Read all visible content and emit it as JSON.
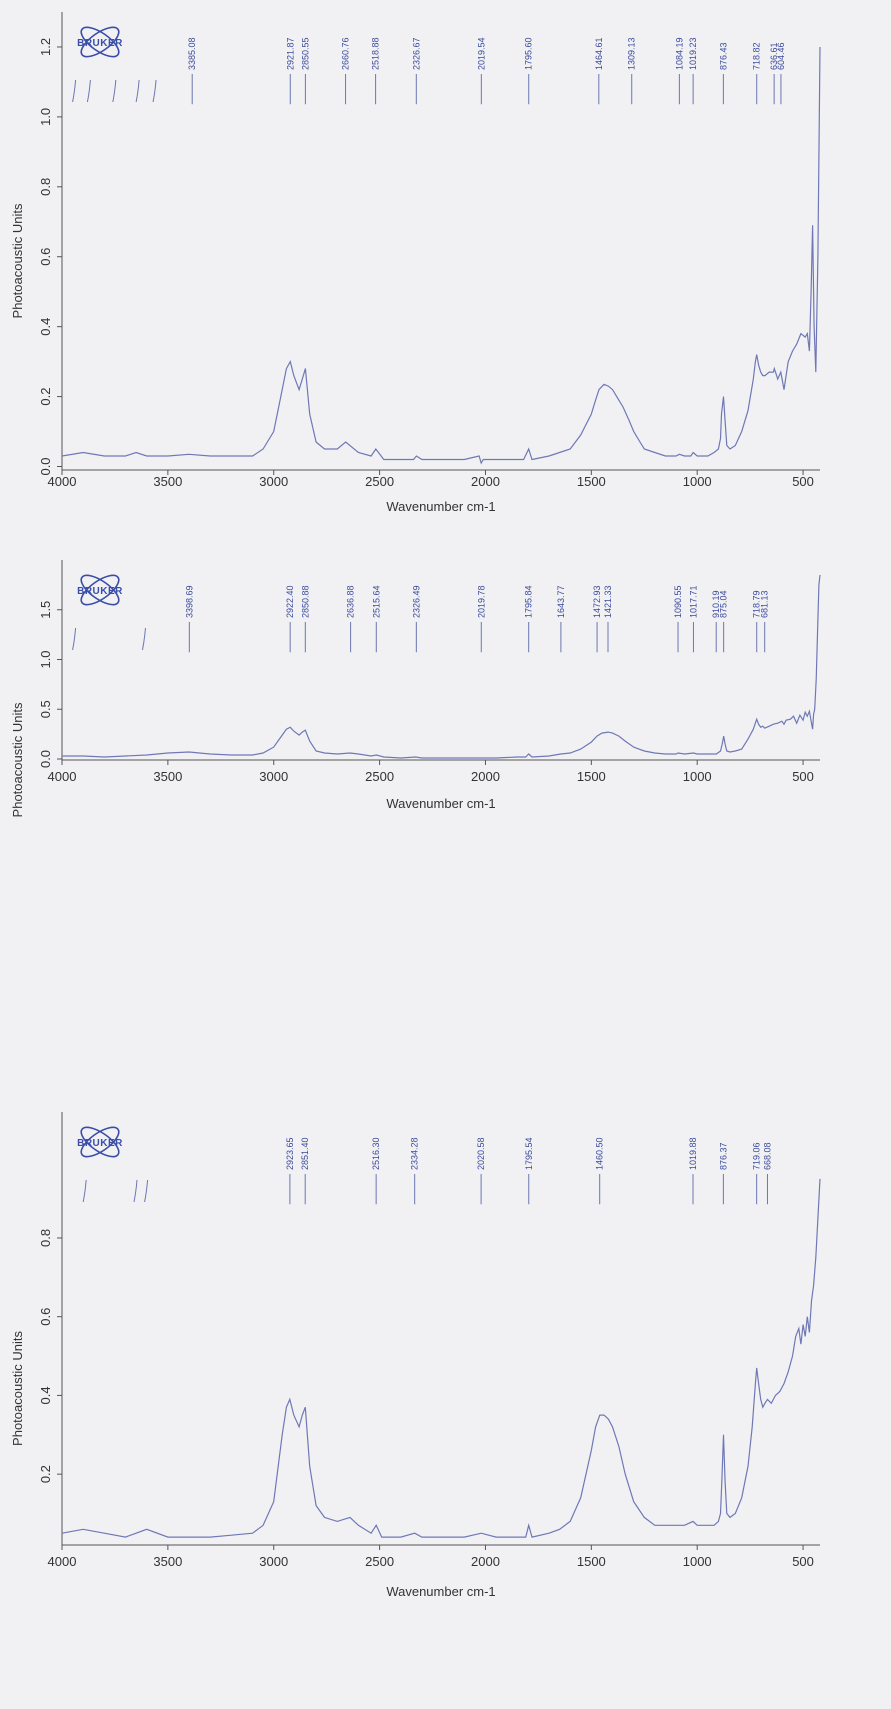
{
  "chart_data": [
    {
      "type": "line",
      "xlabel": "Wavenumber cm-1",
      "ylabel": "Photoacoustic Units",
      "xlim": [
        4000,
        420
      ],
      "ylim": [
        -0.01,
        1.3
      ],
      "x_ticks": [
        4000,
        3500,
        3000,
        2500,
        2000,
        1500,
        1000,
        500
      ],
      "y_ticks": [
        0.0,
        0.2,
        0.4,
        0.6,
        0.8,
        1.0,
        1.2
      ],
      "y_tick_labels": [
        "0.0",
        "0.2",
        "0.4",
        "0.6",
        "0.8",
        "1.0",
        "1.2"
      ],
      "logo": "BRUKER",
      "peak_labels": [
        {
          "x": 3385.08,
          "label": "3385.08"
        },
        {
          "x": 2921.87,
          "label": "2921.87"
        },
        {
          "x": 2850.55,
          "label": "2850.55"
        },
        {
          "x": 2660.76,
          "label": "2660.76"
        },
        {
          "x": 2518.88,
          "label": "2518.88"
        },
        {
          "x": 2326.67,
          "label": "2326.67"
        },
        {
          "x": 2019.54,
          "label": "2019.54"
        },
        {
          "x": 1795.6,
          "label": "1795.60"
        },
        {
          "x": 1464.61,
          "label": "1464.61"
        },
        {
          "x": 1309.13,
          "label": "1309.13"
        },
        {
          "x": 1084.19,
          "label": "1084.19"
        },
        {
          "x": 1019.23,
          "label": "1019.23"
        },
        {
          "x": 876.43,
          "label": "876.43"
        },
        {
          "x": 718.82,
          "label": "718.82"
        },
        {
          "x": 636.61,
          "label": "636.61"
        },
        {
          "x": 604.46,
          "label": "604.46"
        }
      ],
      "unlabeled_peaks": [
        3950,
        3880,
        3760,
        3650,
        3570
      ],
      "x": [
        4000,
        3900,
        3800,
        3700,
        3650,
        3600,
        3500,
        3400,
        3300,
        3200,
        3100,
        3050,
        3000,
        2960,
        2940,
        2921.87,
        2905,
        2880,
        2865,
        2850.55,
        2830,
        2800,
        2760,
        2700,
        2660,
        2600,
        2540,
        2518,
        2480,
        2400,
        2340,
        2326,
        2300,
        2200,
        2100,
        2030,
        2020,
        2010,
        1900,
        1820,
        1796,
        1780,
        1700,
        1650,
        1600,
        1550,
        1500,
        1480,
        1464,
        1440,
        1420,
        1400,
        1380,
        1350,
        1320,
        1300,
        1270,
        1250,
        1200,
        1150,
        1100,
        1084,
        1060,
        1030,
        1019,
        1000,
        950,
        920,
        900,
        890,
        885,
        876,
        868,
        860,
        845,
        820,
        790,
        760,
        735,
        725,
        719,
        710,
        700,
        690,
        680,
        660,
        640,
        636,
        630,
        620,
        605,
        590,
        570,
        550,
        530,
        510,
        490,
        480,
        470,
        462,
        455,
        448,
        440,
        430,
        420
      ],
      "y": [
        0.03,
        0.04,
        0.03,
        0.03,
        0.04,
        0.03,
        0.03,
        0.035,
        0.03,
        0.03,
        0.03,
        0.05,
        0.1,
        0.22,
        0.28,
        0.3,
        0.26,
        0.22,
        0.25,
        0.28,
        0.15,
        0.07,
        0.05,
        0.05,
        0.07,
        0.04,
        0.03,
        0.05,
        0.02,
        0.02,
        0.02,
        0.03,
        0.02,
        0.02,
        0.02,
        0.03,
        0.01,
        0.02,
        0.02,
        0.02,
        0.05,
        0.02,
        0.03,
        0.04,
        0.05,
        0.09,
        0.15,
        0.19,
        0.22,
        0.235,
        0.23,
        0.22,
        0.2,
        0.17,
        0.13,
        0.1,
        0.07,
        0.05,
        0.04,
        0.03,
        0.03,
        0.035,
        0.03,
        0.03,
        0.04,
        0.03,
        0.03,
        0.04,
        0.05,
        0.08,
        0.15,
        0.2,
        0.13,
        0.06,
        0.05,
        0.06,
        0.1,
        0.16,
        0.25,
        0.3,
        0.32,
        0.29,
        0.27,
        0.26,
        0.26,
        0.27,
        0.27,
        0.28,
        0.27,
        0.25,
        0.27,
        0.22,
        0.3,
        0.33,
        0.35,
        0.38,
        0.37,
        0.38,
        0.33,
        0.5,
        0.69,
        0.4,
        0.27,
        0.6,
        1.2
      ]
    },
    {
      "type": "line",
      "xlabel": "Wavenumber cm-1",
      "ylabel": "Photoacoustic Units",
      "xlim": [
        4000,
        420
      ],
      "ylim": [
        -0.01,
        2.0
      ],
      "x_ticks": [
        4000,
        3500,
        3000,
        2500,
        2000,
        1500,
        1000,
        500
      ],
      "y_ticks": [
        0.0,
        0.5,
        1.0,
        1.5
      ],
      "y_tick_labels": [
        "0.0",
        "0.5",
        "1.0",
        "1.5"
      ],
      "logo": "BRUKER",
      "peak_labels": [
        {
          "x": 3398.69,
          "label": "3398.69"
        },
        {
          "x": 2922.4,
          "label": "2922.40"
        },
        {
          "x": 2850.88,
          "label": "2850.88"
        },
        {
          "x": 2636.88,
          "label": "2636.88"
        },
        {
          "x": 2515.64,
          "label": "2515.64"
        },
        {
          "x": 2326.49,
          "label": "2326.49"
        },
        {
          "x": 2019.78,
          "label": "2019.78"
        },
        {
          "x": 1795.84,
          "label": "1795.84"
        },
        {
          "x": 1643.77,
          "label": "1643.77"
        },
        {
          "x": 1472.93,
          "label": "1472.93"
        },
        {
          "x": 1421.33,
          "label": "1421.33"
        },
        {
          "x": 1090.55,
          "label": "1090.55"
        },
        {
          "x": 1017.71,
          "label": "1017.71"
        },
        {
          "x": 910.19,
          "label": "910.19"
        },
        {
          "x": 875.04,
          "label": "875.04"
        },
        {
          "x": 718.79,
          "label": "718.79"
        },
        {
          "x": 681.13,
          "label": "681.13"
        }
      ],
      "unlabeled_peaks": [
        3950,
        3620
      ],
      "x": [
        4000,
        3900,
        3800,
        3700,
        3600,
        3500,
        3400,
        3300,
        3200,
        3100,
        3050,
        3000,
        2960,
        2940,
        2922,
        2905,
        2880,
        2865,
        2851,
        2830,
        2800,
        2760,
        2700,
        2640,
        2600,
        2540,
        2515,
        2480,
        2400,
        2330,
        2300,
        2200,
        2100,
        2020,
        1950,
        1850,
        1810,
        1796,
        1780,
        1700,
        1644,
        1600,
        1550,
        1500,
        1473,
        1450,
        1421,
        1400,
        1370,
        1340,
        1300,
        1250,
        1200,
        1150,
        1100,
        1090,
        1060,
        1018,
        1000,
        950,
        910,
        890,
        882,
        875,
        868,
        860,
        845,
        820,
        790,
        760,
        735,
        719,
        710,
        700,
        690,
        681,
        660,
        640,
        620,
        600,
        590,
        580,
        560,
        545,
        530,
        515,
        500,
        490,
        480,
        470,
        460,
        455,
        450,
        445,
        438,
        430,
        425,
        420
      ],
      "y": [
        0.03,
        0.03,
        0.02,
        0.03,
        0.04,
        0.06,
        0.07,
        0.05,
        0.04,
        0.04,
        0.06,
        0.12,
        0.24,
        0.3,
        0.32,
        0.28,
        0.24,
        0.27,
        0.29,
        0.18,
        0.08,
        0.06,
        0.05,
        0.06,
        0.05,
        0.03,
        0.04,
        0.02,
        0.01,
        0.02,
        0.01,
        0.01,
        0.01,
        0.01,
        0.01,
        0.02,
        0.02,
        0.05,
        0.02,
        0.03,
        0.05,
        0.06,
        0.1,
        0.17,
        0.23,
        0.26,
        0.27,
        0.26,
        0.23,
        0.18,
        0.12,
        0.08,
        0.06,
        0.05,
        0.05,
        0.06,
        0.05,
        0.06,
        0.05,
        0.05,
        0.05,
        0.08,
        0.15,
        0.23,
        0.15,
        0.08,
        0.07,
        0.08,
        0.1,
        0.2,
        0.3,
        0.4,
        0.35,
        0.32,
        0.33,
        0.31,
        0.33,
        0.35,
        0.36,
        0.38,
        0.35,
        0.39,
        0.4,
        0.43,
        0.36,
        0.44,
        0.39,
        0.47,
        0.43,
        0.48,
        0.36,
        0.3,
        0.45,
        0.5,
        0.8,
        1.4,
        1.75,
        1.85
      ]
    },
    {
      "type": "line",
      "xlabel": "Wavenumber cm-1",
      "ylabel": "Photoacoustic Units",
      "xlim": [
        4000,
        420
      ],
      "ylim": [
        0.02,
        1.12
      ],
      "x_ticks": [
        4000,
        3500,
        3000,
        2500,
        2000,
        1500,
        1000,
        500
      ],
      "y_ticks": [
        0.2,
        0.4,
        0.6,
        0.8
      ],
      "y_tick_labels": [
        "0.2",
        "0.4",
        "0.6",
        "0.8"
      ],
      "logo": "BRUKER",
      "peak_labels": [
        {
          "x": 2923.65,
          "label": "2923.65"
        },
        {
          "x": 2851.4,
          "label": "2851.40"
        },
        {
          "x": 2516.3,
          "label": "2516.30"
        },
        {
          "x": 2334.28,
          "label": "2334.28"
        },
        {
          "x": 2020.58,
          "label": "2020.58"
        },
        {
          "x": 1795.54,
          "label": "1795.54"
        },
        {
          "x": 1460.5,
          "label": "1460.50"
        },
        {
          "x": 1019.88,
          "label": "1019.88"
        },
        {
          "x": 876.37,
          "label": "876.37"
        },
        {
          "x": 719.06,
          "label": "719.06"
        },
        {
          "x": 668.08,
          "label": "668.08"
        }
      ],
      "unlabeled_peaks": [
        3900,
        3660,
        3610
      ],
      "x": [
        4000,
        3900,
        3800,
        3700,
        3650,
        3600,
        3500,
        3400,
        3300,
        3200,
        3100,
        3050,
        3000,
        2960,
        2940,
        2924,
        2905,
        2880,
        2865,
        2851,
        2830,
        2800,
        2760,
        2700,
        2640,
        2600,
        2540,
        2516,
        2490,
        2400,
        2334,
        2300,
        2200,
        2100,
        2020,
        1950,
        1850,
        1810,
        1796,
        1780,
        1700,
        1650,
        1600,
        1550,
        1500,
        1480,
        1460,
        1440,
        1420,
        1400,
        1370,
        1340,
        1300,
        1250,
        1200,
        1150,
        1100,
        1060,
        1020,
        1000,
        950,
        920,
        900,
        890,
        884,
        876,
        868,
        860,
        845,
        820,
        790,
        760,
        740,
        725,
        719,
        710,
        700,
        690,
        680,
        668,
        650,
        630,
        610,
        590,
        570,
        550,
        535,
        520,
        510,
        500,
        490,
        480,
        470,
        460,
        450,
        440,
        430,
        420
      ],
      "y": [
        0.05,
        0.06,
        0.05,
        0.04,
        0.05,
        0.06,
        0.04,
        0.04,
        0.04,
        0.045,
        0.05,
        0.07,
        0.13,
        0.3,
        0.37,
        0.39,
        0.35,
        0.32,
        0.35,
        0.37,
        0.22,
        0.12,
        0.09,
        0.08,
        0.09,
        0.07,
        0.05,
        0.07,
        0.04,
        0.04,
        0.05,
        0.04,
        0.04,
        0.04,
        0.05,
        0.04,
        0.04,
        0.04,
        0.07,
        0.04,
        0.05,
        0.06,
        0.08,
        0.14,
        0.26,
        0.32,
        0.35,
        0.35,
        0.34,
        0.32,
        0.27,
        0.2,
        0.13,
        0.09,
        0.07,
        0.07,
        0.07,
        0.07,
        0.08,
        0.07,
        0.07,
        0.07,
        0.08,
        0.1,
        0.18,
        0.3,
        0.18,
        0.1,
        0.09,
        0.1,
        0.14,
        0.22,
        0.32,
        0.43,
        0.47,
        0.43,
        0.39,
        0.37,
        0.38,
        0.39,
        0.38,
        0.4,
        0.41,
        0.43,
        0.46,
        0.5,
        0.55,
        0.57,
        0.53,
        0.58,
        0.55,
        0.6,
        0.56,
        0.64,
        0.68,
        0.75,
        0.85,
        0.95
      ]
    }
  ]
}
